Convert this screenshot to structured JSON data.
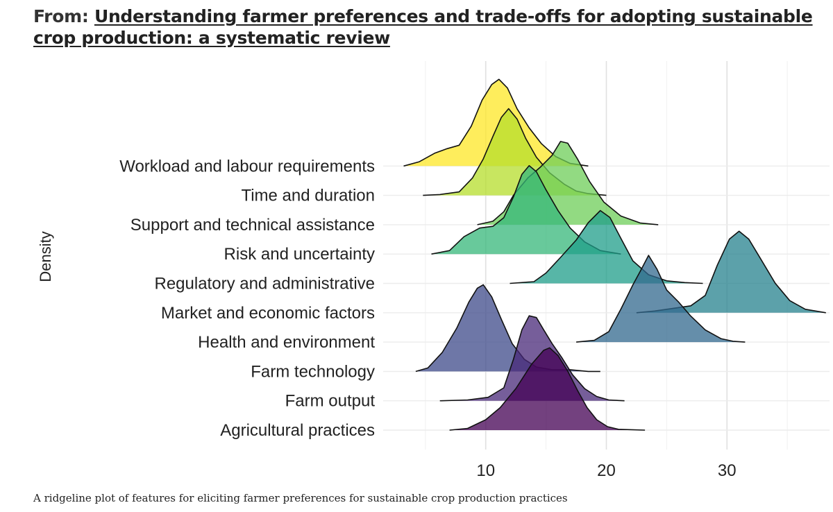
{
  "header": {
    "prefix": "From:",
    "link_text": "Understanding farmer preferences and trade-offs for adopting sustainable crop production: a systematic review"
  },
  "caption": "A ridgeline plot of features for eliciting farmer preferences for sustainable crop production practices",
  "chart_data": {
    "type": "ridgeline",
    "ylabel": "Density",
    "xlabel": "",
    "x_ticks": [
      10,
      20,
      30
    ],
    "xlim": [
      1.5,
      38.5
    ],
    "grid": true,
    "categories": [
      "Agricultural practices",
      "Farm output",
      "Farm technology",
      "Health and environment",
      "Market and economic factors",
      "Regulatory and administrative",
      "Risk and uncertainty",
      "Support and technical assistance",
      "Time and duration",
      "Workload and labour requirements"
    ],
    "series": [
      {
        "category": "Agricultural practices",
        "color": "#440154",
        "density": [
          [
            7,
            0
          ],
          [
            8.5,
            0.02
          ],
          [
            10,
            0.12
          ],
          [
            11.2,
            0.26
          ],
          [
            12.5,
            0.48
          ],
          [
            13.8,
            0.76
          ],
          [
            14.8,
            0.92
          ],
          [
            15.3,
            0.95
          ],
          [
            16,
            0.86
          ],
          [
            16.8,
            0.68
          ],
          [
            17.6,
            0.46
          ],
          [
            18.4,
            0.26
          ],
          [
            19.2,
            0.12
          ],
          [
            20.1,
            0.04
          ],
          [
            21,
            0.01
          ],
          [
            23.2,
            0
          ]
        ]
      },
      {
        "category": "Farm output",
        "color": "#482878",
        "density": [
          [
            6.2,
            0
          ],
          [
            8.5,
            0.01
          ],
          [
            10.2,
            0.04
          ],
          [
            11.5,
            0.15
          ],
          [
            12.3,
            0.48
          ],
          [
            13,
            0.82
          ],
          [
            13.6,
            0.98
          ],
          [
            14.2,
            0.96
          ],
          [
            14.8,
            0.82
          ],
          [
            15.5,
            0.66
          ],
          [
            16.3,
            0.5
          ],
          [
            17.2,
            0.3
          ],
          [
            18.2,
            0.14
          ],
          [
            19.2,
            0.05
          ],
          [
            20.2,
            0.01
          ],
          [
            21.5,
            0
          ]
        ]
      },
      {
        "category": "Farm technology",
        "color": "#3e4a89",
        "density": [
          [
            4.2,
            0
          ],
          [
            5.2,
            0.04
          ],
          [
            6.4,
            0.22
          ],
          [
            7.6,
            0.5
          ],
          [
            8.6,
            0.8
          ],
          [
            9.3,
            0.96
          ],
          [
            9.8,
            1.0
          ],
          [
            10.5,
            0.86
          ],
          [
            11.3,
            0.6
          ],
          [
            12.2,
            0.32
          ],
          [
            13.2,
            0.14
          ],
          [
            14.2,
            0.05
          ],
          [
            15.5,
            0.02
          ],
          [
            17,
            0.02
          ],
          [
            18.5,
            0
          ],
          [
            19.5,
            0
          ]
        ]
      },
      {
        "category": "Health and environment",
        "color": "#31688e",
        "density": [
          [
            17.5,
            0
          ],
          [
            19,
            0.02
          ],
          [
            20.2,
            0.12
          ],
          [
            21.2,
            0.38
          ],
          [
            22.2,
            0.66
          ],
          [
            22.9,
            0.84
          ],
          [
            23.5,
            1.0
          ],
          [
            24.2,
            0.84
          ],
          [
            25,
            0.6
          ],
          [
            26,
            0.46
          ],
          [
            27,
            0.3
          ],
          [
            28.2,
            0.14
          ],
          [
            29.5,
            0.04
          ],
          [
            30.5,
            0.01
          ],
          [
            31.5,
            0
          ]
        ]
      },
      {
        "category": "Market and economic factors",
        "color": "#26828e",
        "density": [
          [
            22.5,
            0
          ],
          [
            24,
            0.02
          ],
          [
            25.5,
            0.05
          ],
          [
            27,
            0.08
          ],
          [
            28.2,
            0.2
          ],
          [
            29.2,
            0.55
          ],
          [
            30.2,
            0.85
          ],
          [
            31,
            0.94
          ],
          [
            31.8,
            0.85
          ],
          [
            32.8,
            0.62
          ],
          [
            34,
            0.34
          ],
          [
            35.2,
            0.14
          ],
          [
            36.5,
            0.04
          ],
          [
            38.2,
            0
          ]
        ]
      },
      {
        "category": "Regulatory and administrative",
        "color": "#1f9e89",
        "density": [
          [
            12,
            0
          ],
          [
            14,
            0.02
          ],
          [
            15,
            0.12
          ],
          [
            16.2,
            0.3
          ],
          [
            17.5,
            0.5
          ],
          [
            18.5,
            0.7
          ],
          [
            19.5,
            0.84
          ],
          [
            20.3,
            0.76
          ],
          [
            21.2,
            0.52
          ],
          [
            22.2,
            0.26
          ],
          [
            23.5,
            0.1
          ],
          [
            25,
            0.03
          ],
          [
            26.5,
            0.01
          ],
          [
            28,
            0
          ]
        ]
      },
      {
        "category": "Risk and uncertainty",
        "color": "#35b779",
        "density": [
          [
            5.5,
            0
          ],
          [
            7,
            0.04
          ],
          [
            8.2,
            0.2
          ],
          [
            9.5,
            0.3
          ],
          [
            10.6,
            0.32
          ],
          [
            11.5,
            0.42
          ],
          [
            12.3,
            0.66
          ],
          [
            13,
            0.92
          ],
          [
            13.6,
            1.02
          ],
          [
            14.2,
            0.95
          ],
          [
            15,
            0.74
          ],
          [
            16,
            0.5
          ],
          [
            17,
            0.3
          ],
          [
            18.2,
            0.14
          ],
          [
            19.5,
            0.04
          ],
          [
            21.2,
            0
          ]
        ]
      },
      {
        "category": "Support and technical assistance",
        "color": "#6ece58",
        "density": [
          [
            9.3,
            0
          ],
          [
            10.6,
            0.04
          ],
          [
            11.5,
            0.15
          ],
          [
            12.3,
            0.34
          ],
          [
            13.5,
            0.54
          ],
          [
            14.5,
            0.66
          ],
          [
            15.5,
            0.8
          ],
          [
            16.2,
            0.96
          ],
          [
            16.8,
            0.94
          ],
          [
            17.6,
            0.76
          ],
          [
            18.6,
            0.5
          ],
          [
            19.8,
            0.26
          ],
          [
            21.2,
            0.1
          ],
          [
            22.8,
            0.02
          ],
          [
            24.3,
            0
          ]
        ]
      },
      {
        "category": "Time and duration",
        "color": "#b5de2b",
        "density": [
          [
            4.8,
            0
          ],
          [
            6.2,
            0.01
          ],
          [
            7.8,
            0.04
          ],
          [
            8.9,
            0.2
          ],
          [
            9.8,
            0.42
          ],
          [
            10.6,
            0.68
          ],
          [
            11.3,
            0.9
          ],
          [
            11.9,
            1.0
          ],
          [
            12.6,
            0.88
          ],
          [
            13.3,
            0.66
          ],
          [
            14.2,
            0.44
          ],
          [
            15.3,
            0.26
          ],
          [
            16.5,
            0.13
          ],
          [
            17.5,
            0.05
          ],
          [
            18.5,
            0.02
          ],
          [
            20,
            0
          ]
        ]
      },
      {
        "category": "Workload and labour requirements",
        "color": "#fde725",
        "density": [
          [
            3.2,
            0
          ],
          [
            4.5,
            0.05
          ],
          [
            5.8,
            0.15
          ],
          [
            6.8,
            0.2
          ],
          [
            7.8,
            0.24
          ],
          [
            8.8,
            0.46
          ],
          [
            9.7,
            0.76
          ],
          [
            10.5,
            0.94
          ],
          [
            11.1,
            1.0
          ],
          [
            11.8,
            0.9
          ],
          [
            12.6,
            0.66
          ],
          [
            13.6,
            0.44
          ],
          [
            14.6,
            0.26
          ],
          [
            15.8,
            0.11
          ],
          [
            17,
            0.03
          ],
          [
            18.5,
            0
          ]
        ]
      }
    ]
  }
}
